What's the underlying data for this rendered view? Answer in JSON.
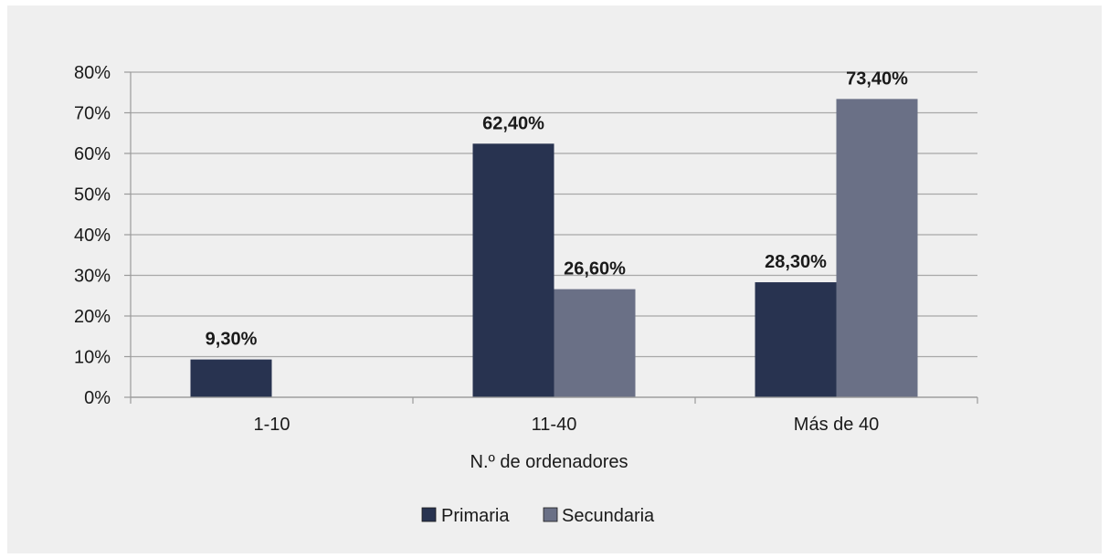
{
  "chart_data": {
    "type": "bar",
    "categories": [
      "1-10",
      "11-40",
      "Más de 40"
    ],
    "series": [
      {
        "name": "Primaria",
        "color": "#283350",
        "values": [
          9.3,
          62.4,
          28.3
        ],
        "labels": [
          "9,30%",
          "62,40%",
          "28,30%"
        ]
      },
      {
        "name": "Secundaria",
        "color": "#6a7086",
        "values": [
          null,
          26.6,
          73.4
        ],
        "labels": [
          "",
          "26,60%",
          "73,40%"
        ]
      }
    ],
    "xlabel": "N.º de ordenadores",
    "ylabel": "",
    "ylim": [
      0,
      80
    ],
    "yticks": [
      0,
      10,
      20,
      30,
      40,
      50,
      60,
      70,
      80
    ],
    "ytick_labels": [
      "0%",
      "10%",
      "20%",
      "30%",
      "40%",
      "50%",
      "60%",
      "70%",
      "80%"
    ],
    "grid": true,
    "legend_position": "bottom"
  }
}
